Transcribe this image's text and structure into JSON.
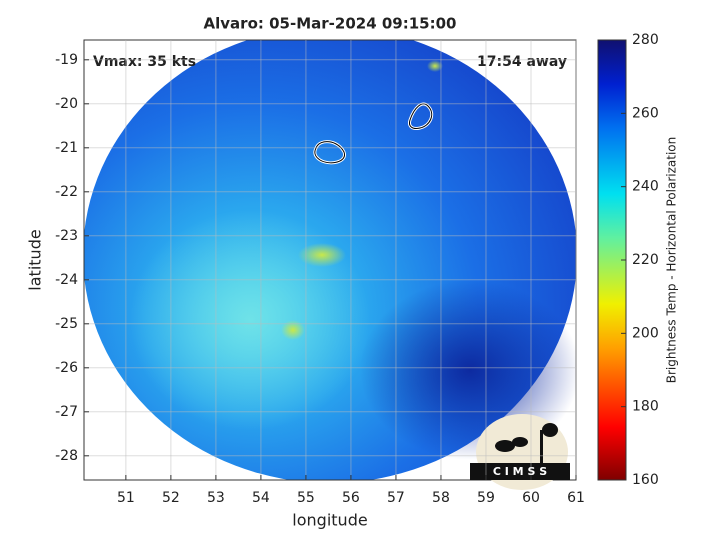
{
  "chart_data": {
    "type": "image",
    "title": "Alvaro: 05-Mar-2024 09:15:00",
    "annotations": [
      "Vmax: 35 kts",
      "17:54 away"
    ],
    "xlabel": "longitude",
    "ylabel": "latitude",
    "xlim": [
      50.07,
      61
    ],
    "xticks": [
      51,
      52,
      53,
      54,
      55,
      56,
      57,
      58,
      59,
      60,
      61
    ],
    "ylim": [
      -28.55,
      -18.55
    ],
    "yticks": [
      -19,
      -20,
      -21,
      -22,
      -23,
      -24,
      -25,
      -26,
      -27,
      -28
    ],
    "grid": true,
    "colorbar": {
      "label": "Brightness Temp - Horizontal Polarization",
      "lim": [
        160,
        280
      ],
      "ticks": [
        160,
        180,
        200,
        220,
        240,
        260,
        280
      ]
    },
    "logo": "C I M S S"
  }
}
